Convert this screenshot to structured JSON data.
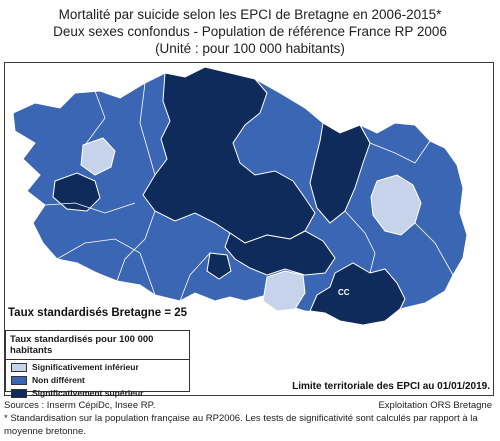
{
  "title": {
    "line1": "Mortalité par suicide selon les EPCI de Bretagne en 2006-2015*",
    "line2": "Deux sexes confondus - Population de référence France RP 2006",
    "line3": "(Unité : pour 100 000 habitants)"
  },
  "colors": {
    "inferieur": "#c7d3ea",
    "non_different": "#3b66b3",
    "superieur": "#0f2b5b",
    "border": "#ffffff",
    "outline": "#888888"
  },
  "region_rate": "Taux standardisés Bretagne = 25",
  "legend": {
    "title": "Taux standardisés pour 100 000 habitants",
    "items": [
      {
        "label": "Significativement inférieur",
        "class": "inferieur"
      },
      {
        "label": "Non différent",
        "class": "non_different"
      },
      {
        "label": "Significativement supérieur",
        "class": "superieur"
      }
    ]
  },
  "map_labels": {
    "cc": "CC"
  },
  "limit_note": "Limite territoriale des EPCI au 01/01/2019.",
  "footer": {
    "sources": "Sources : Inserm CépiDc, Insee RP.",
    "exploitation": "Exploitation ORS Bretagne",
    "footnote": "* Standardisation sur la population française au RP2006. Les tests de significativité sont calculés par rapport à la moyenne bretonne."
  }
}
